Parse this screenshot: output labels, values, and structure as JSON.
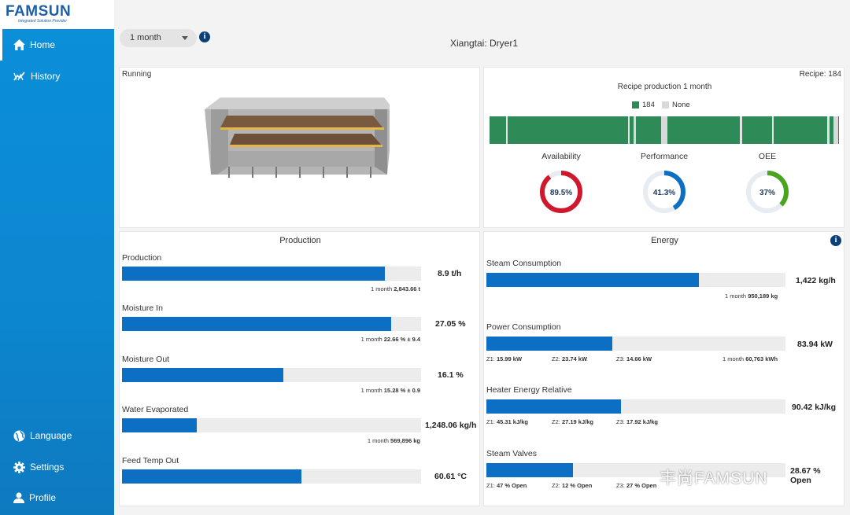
{
  "logo": {
    "brand": "FAMSUN",
    "tagline": "Integrated Solution Provider"
  },
  "sidebar": {
    "items": [
      {
        "label": "Home",
        "icon": "home-icon"
      },
      {
        "label": "History",
        "icon": "chart-line-icon"
      }
    ],
    "bottom_items": [
      {
        "label": "Language",
        "icon": "globe-icon"
      },
      {
        "label": "Settings",
        "icon": "gear-icon"
      },
      {
        "label": "Profile",
        "icon": "user-icon"
      }
    ]
  },
  "toolbar": {
    "period": "1 month",
    "page_title": "Xiangtai: Dryer1"
  },
  "status_card": {
    "status": "Running"
  },
  "recipe_card": {
    "recipe_label": "Recipe: 184",
    "chart_title": "Recipe production 1 month",
    "legend": [
      {
        "name": "184",
        "color": "#2e8b57"
      },
      {
        "name": "None",
        "color": "#d9d9d9"
      }
    ],
    "gauges": [
      {
        "label": "Availability",
        "value": "89.5%",
        "fraction": 0.895,
        "color": "#d0182d"
      },
      {
        "label": "Performance",
        "value": "41.3%",
        "fraction": 0.413,
        "color": "#0d6fc4"
      },
      {
        "label": "OEE",
        "value": "37%",
        "fraction": 0.37,
        "color": "#4aa51e"
      }
    ]
  },
  "production": {
    "title": "Production",
    "rows": [
      {
        "label": "Production",
        "value": "8.9 t/h",
        "fraction": 0.88,
        "sub_prefix": "1 month",
        "sub_value": "2,843.66 t"
      },
      {
        "label": "Moisture In",
        "value": "27.05 %",
        "fraction": 0.9,
        "sub_prefix": "1 month",
        "sub_value": "22.66 % ± 9.4"
      },
      {
        "label": "Moisture Out",
        "value": "16.1 %",
        "fraction": 0.54,
        "sub_prefix": "1 month",
        "sub_value": "15.28 % ± 0.9"
      },
      {
        "label": "Water Evaporated",
        "value": "1,248.06 kg/h",
        "fraction": 0.25,
        "sub_prefix": "1 month",
        "sub_value": "569,896 kg"
      },
      {
        "label": "Feed Temp Out",
        "value": "60.61 °C",
        "fraction": 0.6,
        "sub_prefix": "",
        "sub_value": ""
      }
    ]
  },
  "energy": {
    "title": "Energy",
    "steam": {
      "label": "Steam Consumption",
      "value": "1,422 kg/h",
      "fraction": 0.71,
      "sub_prefix": "1 month",
      "sub_value": "950,189 kg"
    },
    "power": {
      "label": "Power Consumption",
      "value": "83.94 kW",
      "fraction": 0.42,
      "zones": [
        {
          "z": "Z1:",
          "v": "15.99 kW"
        },
        {
          "z": "Z2:",
          "v": "23.74 kW"
        },
        {
          "z": "Z3:",
          "v": "14.66 kW"
        }
      ],
      "sub_prefix": "1 month",
      "sub_value": "60,763 kWh"
    },
    "heater": {
      "label": "Heater Energy Relative",
      "value": "90.42 kJ/kg",
      "fraction": 0.45,
      "zones": [
        {
          "z": "Z1:",
          "v": "45.31 kJ/kg"
        },
        {
          "z": "Z2:",
          "v": "27.19 kJ/kg"
        },
        {
          "z": "Z3:",
          "v": "17.92 kJ/kg"
        }
      ]
    },
    "valves": {
      "label": "Steam Valves",
      "value": "28.67 % Open",
      "fraction": 0.29,
      "zones": [
        {
          "z": "Z1:",
          "v": "47 % Open"
        },
        {
          "z": "Z2:",
          "v": "12 % Open"
        },
        {
          "z": "Z3:",
          "v": "27 % Open"
        }
      ]
    }
  },
  "watermark": "丰尚FAMSUN"
}
